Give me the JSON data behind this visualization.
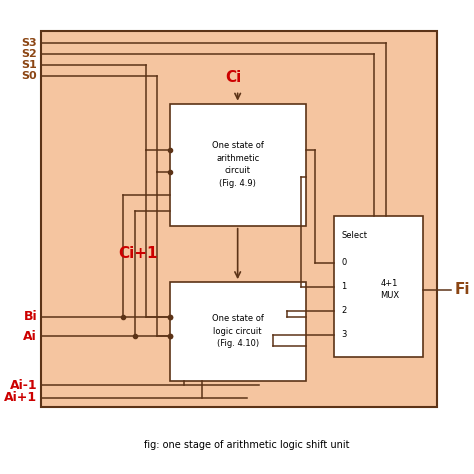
{
  "bg_color": "#F5C5A0",
  "box_color": "#FFFFFF",
  "line_color": "#5C3317",
  "red_color": "#CC0000",
  "dark_red": "#8B4513",
  "title": "fig: one stage of arithmetic logic shift unit",
  "arith_label": "One state of\narithmetic\ncircuit\n(Fig. 4.9)",
  "logic_label": "One state of\nlogic circuit\n(Fig. 4.10)",
  "mux_label": "4+1\nMUX",
  "select_label": "Select",
  "mux_ports": [
    "0",
    "1",
    "2",
    "3"
  ],
  "ci_label": "Ci",
  "ci1_label": "Ci+1",
  "fi_label": "Fi",
  "s_labels": [
    "S3",
    "S2",
    "S1",
    "S0"
  ],
  "bi_label": "Bi",
  "ai_label": "Ai",
  "aim1_label": "Ai-1",
  "aip1_label": "Ai+1"
}
